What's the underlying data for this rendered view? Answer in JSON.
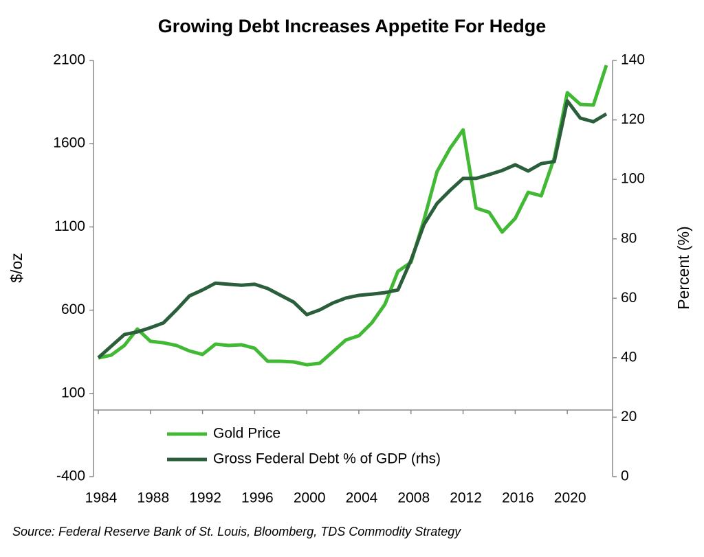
{
  "chart_data": {
    "type": "line",
    "title": "Growing Debt Increases Appetite For Hedge",
    "y_label": "$/oz",
    "y2_label": "Percent (%)",
    "source": "Source: Federal Reserve Bank of St. Louis, Bloomberg, TDS Commodity Strategy",
    "x": [
      1984,
      1985,
      1986,
      1987,
      1988,
      1989,
      1990,
      1991,
      1992,
      1993,
      1994,
      1995,
      1996,
      1997,
      1998,
      1999,
      2000,
      2001,
      2002,
      2003,
      2004,
      2005,
      2006,
      2007,
      2008,
      2009,
      2010,
      2011,
      2012,
      2013,
      2014,
      2015,
      2016,
      2017,
      2018,
      2019,
      2020,
      2021,
      2022,
      2023
    ],
    "xlim": [
      1984,
      2023
    ],
    "xticks": [
      1984,
      1988,
      1992,
      1996,
      2000,
      2004,
      2008,
      2012,
      2016,
      2020
    ],
    "ylim": [
      -400,
      2100
    ],
    "yticks": [
      -400,
      100,
      600,
      1100,
      1600,
      2100
    ],
    "y2lim": [
      0,
      140
    ],
    "y2ticks": [
      0,
      20,
      40,
      60,
      80,
      100,
      120,
      140
    ],
    "legend": "bottom",
    "series": [
      {
        "name": "Gold Price",
        "color": "#41b935",
        "values": [
          313,
          330,
          388,
          487,
          413,
          404,
          388,
          355,
          334,
          396,
          388,
          392,
          371,
          293,
          293,
          289,
          272,
          281,
          351,
          421,
          446,
          524,
          635,
          833,
          887,
          1143,
          1432,
          1572,
          1683,
          1213,
          1188,
          1069,
          1151,
          1308,
          1287,
          1514,
          1906,
          1836,
          1832,
          2071
        ]
      },
      {
        "name": "Gross Federal Debt % of GDP (rhs)",
        "color": "#2b5e3a",
        "axis": "y2",
        "values": [
          40,
          43.9,
          47.8,
          48.7,
          50.1,
          51.7,
          56.1,
          60.8,
          62.8,
          65.1,
          64.7,
          64.4,
          64.7,
          63.3,
          61,
          58.7,
          54.5,
          56.1,
          58.4,
          60.1,
          61,
          61.4,
          61.9,
          62.8,
          72.8,
          84.8,
          91.9,
          96.3,
          100.3,
          100.3,
          101.6,
          103,
          104.9,
          102.8,
          105.3,
          106,
          126.4,
          120.6,
          119.4,
          122
        ]
      }
    ]
  }
}
